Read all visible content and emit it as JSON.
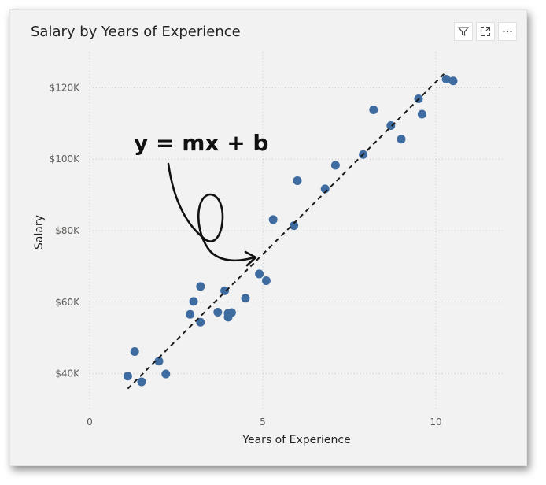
{
  "visual": {
    "title": "Salary by Years of Experience",
    "toolbar": [
      {
        "name": "filter-icon"
      },
      {
        "name": "focus-mode-icon"
      },
      {
        "name": "more-options-icon"
      }
    ]
  },
  "annotation": {
    "text": "y = mx + b"
  },
  "chart_data": {
    "type": "scatter",
    "title": "Salary by Years of Experience",
    "xlabel": "Years of Experience",
    "ylabel": "Salary",
    "xlim": [
      0,
      12
    ],
    "ylim": [
      30000,
      130000
    ],
    "x_ticks": [
      0,
      5,
      10
    ],
    "x_tick_labels": [
      "0",
      "5",
      "10"
    ],
    "y_ticks": [
      40000,
      60000,
      80000,
      100000,
      120000
    ],
    "y_tick_labels": [
      "$40K",
      "$60K",
      "$80K",
      "$100K",
      "$120K"
    ],
    "grid": true,
    "point_color": "#3f6ca0",
    "trendline": {
      "style": "dashed",
      "color": "#1a1a1a",
      "from": [
        1.1,
        35800
      ],
      "to": [
        10.3,
        124500
      ]
    },
    "points": [
      {
        "x": 1.1,
        "y": 39300
      },
      {
        "x": 1.3,
        "y": 46200
      },
      {
        "x": 1.5,
        "y": 37700
      },
      {
        "x": 2.0,
        "y": 43500
      },
      {
        "x": 2.2,
        "y": 39900
      },
      {
        "x": 2.9,
        "y": 56600
      },
      {
        "x": 3.0,
        "y": 60200
      },
      {
        "x": 3.2,
        "y": 54400
      },
      {
        "x": 3.2,
        "y": 64400
      },
      {
        "x": 3.7,
        "y": 57200
      },
      {
        "x": 3.9,
        "y": 63200
      },
      {
        "x": 4.0,
        "y": 55800
      },
      {
        "x": 4.0,
        "y": 56900
      },
      {
        "x": 4.1,
        "y": 57100
      },
      {
        "x": 4.5,
        "y": 61100
      },
      {
        "x": 4.9,
        "y": 67900
      },
      {
        "x": 5.1,
        "y": 66000
      },
      {
        "x": 5.3,
        "y": 83100
      },
      {
        "x": 5.9,
        "y": 81400
      },
      {
        "x": 6.0,
        "y": 94000
      },
      {
        "x": 6.8,
        "y": 91700
      },
      {
        "x": 7.1,
        "y": 98300
      },
      {
        "x": 7.9,
        "y": 101300
      },
      {
        "x": 8.2,
        "y": 113800
      },
      {
        "x": 8.7,
        "y": 109400
      },
      {
        "x": 9.0,
        "y": 105600
      },
      {
        "x": 9.5,
        "y": 116900
      },
      {
        "x": 9.6,
        "y": 112600
      },
      {
        "x": 10.3,
        "y": 122400
      },
      {
        "x": 10.5,
        "y": 121900
      }
    ]
  }
}
